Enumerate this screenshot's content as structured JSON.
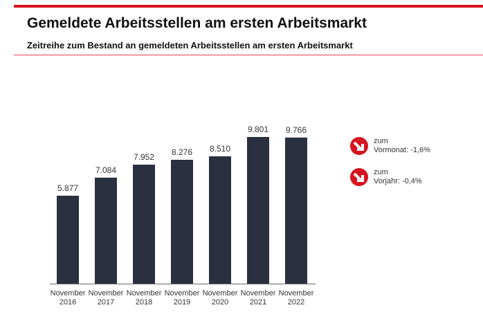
{
  "header": {
    "title": "Gemeldete Arbeitsstellen am ersten Arbeitsmarkt",
    "subtitle": "Zeitreihe zum Bestand an gemeldeten Arbeitsstellen am ersten Arbeitsmarkt"
  },
  "chart_data": {
    "type": "bar",
    "categories": [
      "November 2016",
      "November 2017",
      "November 2018",
      "November 2019",
      "November 2020",
      "November 2021",
      "November 2022"
    ],
    "category_lines": [
      [
        "November",
        "2016"
      ],
      [
        "November",
        "2017"
      ],
      [
        "November",
        "2018"
      ],
      [
        "November",
        "2019"
      ],
      [
        "November",
        "2020"
      ],
      [
        "November",
        "2021"
      ],
      [
        "November",
        "2022"
      ]
    ],
    "values": [
      5877,
      7084,
      7952,
      8276,
      8510,
      9801,
      9766
    ],
    "value_labels": [
      "5.877",
      "7.084",
      "7.952",
      "8.276",
      "8.510",
      "9.801",
      "9.766"
    ],
    "ylim": [
      0,
      10000
    ],
    "grid": false,
    "bar_color": "#2b3040"
  },
  "indicators": [
    {
      "icon": "down-arrow-icon",
      "line1": "zum",
      "line2": "Vormonat: -1,6%"
    },
    {
      "icon": "down-arrow-icon",
      "line1": "zum",
      "line2": "Vorjahr: -0,4%"
    }
  ],
  "colors": {
    "accent": "#d7141f"
  }
}
